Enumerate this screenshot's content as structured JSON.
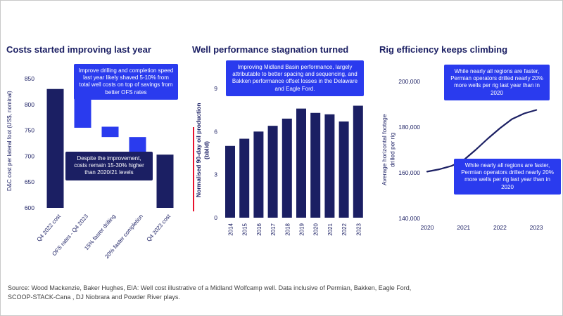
{
  "colors": {
    "navy": "#1b1f63",
    "blue": "#2a3bee",
    "red": "#e8112d",
    "source_text": "#404040",
    "background": "#ffffff"
  },
  "footer": {
    "source_line1": "Source: Wood Mackenzie,  Baker Hughes, EIA: Well cost illustrative of a Midland Wolfcamp well. Data inclusive of Permian, Bakken, Eagle Ford,",
    "source_line2": "SCOOP-STACK-Cana  , DJ Niobrara and Powder River plays."
  },
  "chart_data": [
    {
      "id": "costs-waterfall",
      "type": "bar",
      "subtype": "waterfall",
      "title": "Costs started improving last year",
      "ylabel": "D&C cost per lateral foot (US$, nominal)",
      "ylim": [
        600,
        850
      ],
      "yticks": [
        850,
        800,
        750,
        700,
        650,
        600
      ],
      "grid": false,
      "categories": [
        "Q4 2022 cost",
        "OFS rates - Q4 2023",
        "15% faster drilling",
        "20% faster completion",
        "Q4 2023 cost"
      ],
      "segments": [
        [
          600,
          830
        ],
        [
          755,
          830
        ],
        [
          737,
          757
        ],
        [
          705,
          737
        ],
        [
          600,
          703
        ]
      ],
      "bar_colors": [
        "navy",
        "blue",
        "blue",
        "blue",
        "navy"
      ],
      "annotations": [
        {
          "text": "Improve drilling and completion speed last year likely shaved 5-10% from total well costs on top of savings from better OFS rates",
          "style": "blue"
        },
        {
          "text": "Despite the improvement, costs remain 15-30% higher than 2020/21 levels",
          "style": "navy"
        }
      ]
    },
    {
      "id": "well-performance",
      "type": "bar",
      "title": "Well performance stagnation turned",
      "ylabel": "Normalised 90-day oil production",
      "ylabel_unit": "(bbl/d)",
      "ylim": [
        0,
        9
      ],
      "yticks": [
        9,
        6,
        3,
        0
      ],
      "grid": false,
      "categories": [
        "2014",
        "2015",
        "2016",
        "2017",
        "2018",
        "2019",
        "2020",
        "2021",
        "2022",
        "2023"
      ],
      "values": [
        5.0,
        5.5,
        6.0,
        6.4,
        6.9,
        7.6,
        7.3,
        7.2,
        6.7,
        7.8
      ],
      "annotations": [
        {
          "text": "Improving Midland Basin performance, largely attributable to better spacing and sequencing, and Bakken performance offset losses in the Delaware and Eagle Ford.",
          "style": "blue"
        }
      ]
    },
    {
      "id": "rig-efficiency",
      "type": "line",
      "title": "Rig efficiency keeps climbing",
      "ylabel": "Average horizontal footage",
      "ylabel_unit": "drilled per rig",
      "ylim": [
        140000,
        200000
      ],
      "ytick_values": [
        200000,
        180000,
        160000,
        140000
      ],
      "ytick_labels": [
        "200,000",
        "180,000",
        "160,000",
        "140,000"
      ],
      "xticks": [
        "2020",
        "2021",
        "2022",
        "2023"
      ],
      "x": [
        2020,
        2020.33,
        2020.67,
        2021,
        2021.33,
        2021.67,
        2022,
        2022.33,
        2022.67,
        2023
      ],
      "values": [
        160500,
        161500,
        163000,
        165500,
        170000,
        175000,
        179500,
        183500,
        186000,
        187500
      ],
      "annotations": [
        {
          "text": "While nearly all regions are faster, Permian operators drilled nearly 20% more wells per rig last year than in 2020",
          "style": "blue"
        },
        {
          "text": "While nearly all regions are faster, Permian operators drilled nearly 20% more wells per rig last year than in 2020",
          "style": "blue"
        }
      ]
    }
  ]
}
